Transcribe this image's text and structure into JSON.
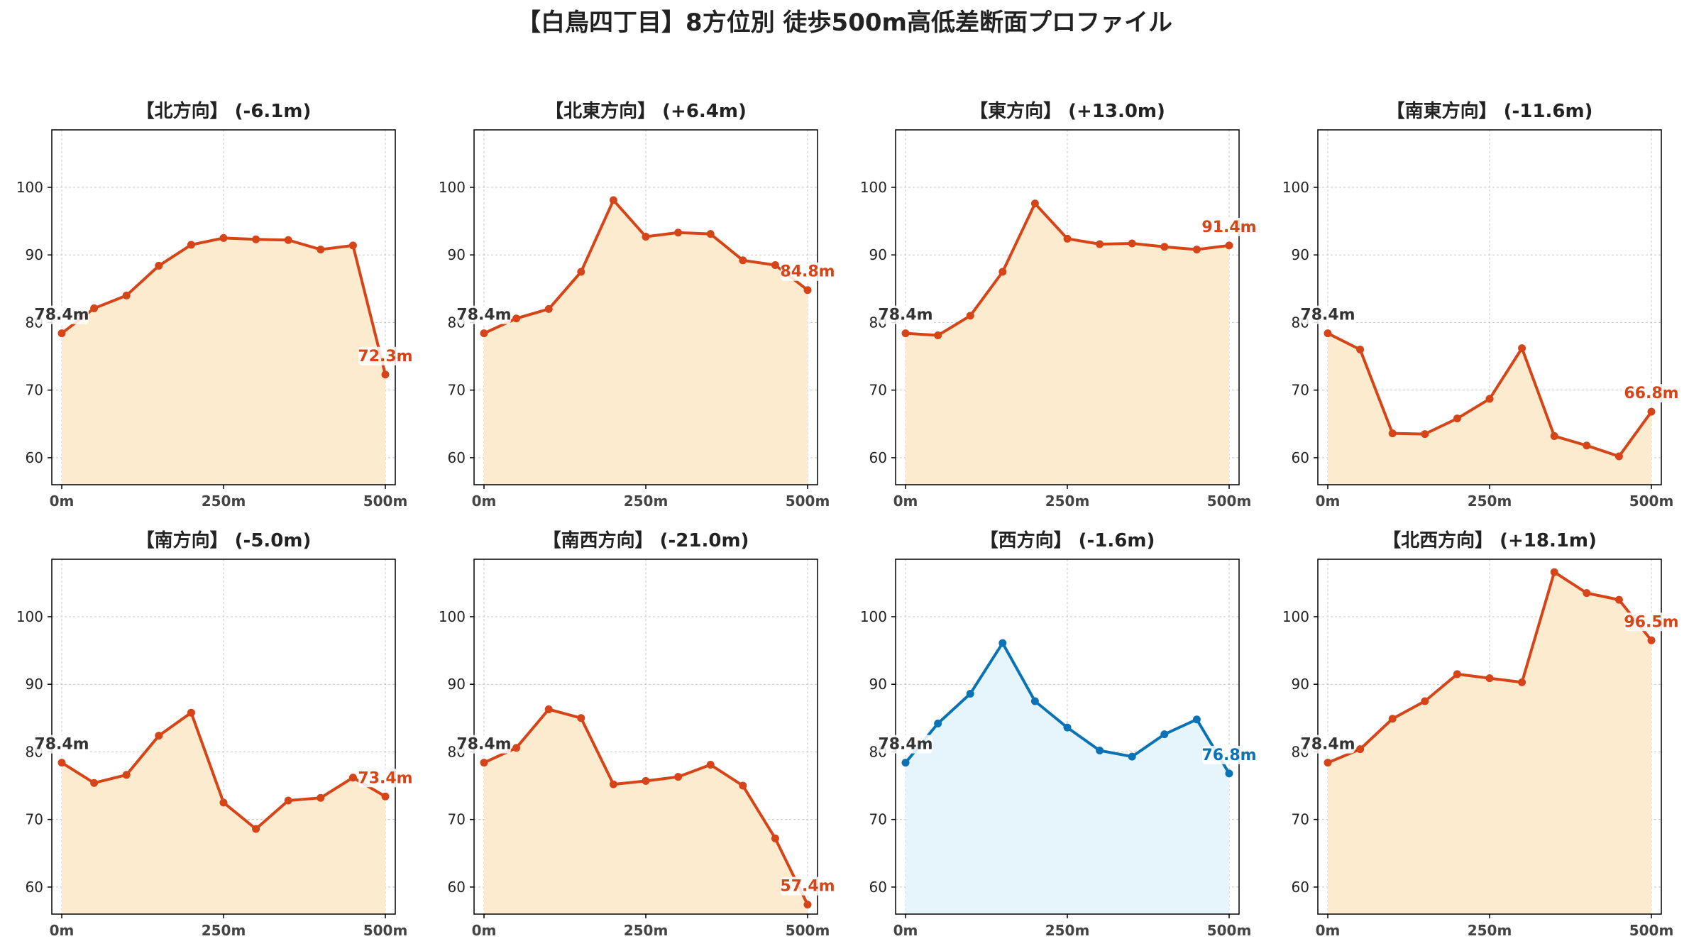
{
  "title": "【白鳥四丁目】8方位別 徒歩500m高低差断面プロファイル",
  "colors": {
    "up_line": "#d64418",
    "up_fill": "#fdebd0",
    "down_line": "#0a73b5",
    "down_fill": "#e6f4fb",
    "start_label": "#333333",
    "grid": "#c8c8c8",
    "axis": "#000000"
  },
  "chart_data": [
    {
      "type": "area",
      "title": "【北方向】 (-6.1m)",
      "x": [
        0,
        50,
        100,
        150,
        200,
        250,
        300,
        350,
        400,
        450,
        500
      ],
      "values": [
        78.4,
        82.1,
        84.0,
        88.4,
        91.5,
        92.5,
        92.3,
        92.2,
        90.8,
        91.4,
        72.3
      ],
      "start_label": "78.4m",
      "end_label": "72.3m",
      "ylim": [
        56,
        108.5
      ],
      "yticks": [
        60,
        70,
        80,
        90,
        100
      ],
      "xticks": [
        0,
        250,
        500
      ],
      "xtick_labels": [
        "0m",
        "250m",
        "500m"
      ],
      "grid": true,
      "color_scheme": "up"
    },
    {
      "type": "area",
      "title": "【北東方向】 (+6.4m)",
      "x": [
        0,
        50,
        100,
        150,
        200,
        250,
        300,
        350,
        400,
        450,
        500
      ],
      "values": [
        78.4,
        80.6,
        82.0,
        87.5,
        98.1,
        92.7,
        93.3,
        93.1,
        89.2,
        88.5,
        84.8
      ],
      "start_label": "78.4m",
      "end_label": "84.8m",
      "ylim": [
        56,
        108.5
      ],
      "yticks": [
        60,
        70,
        80,
        90,
        100
      ],
      "xticks": [
        0,
        250,
        500
      ],
      "xtick_labels": [
        "0m",
        "250m",
        "500m"
      ],
      "grid": true,
      "color_scheme": "up"
    },
    {
      "type": "area",
      "title": "【東方向】 (+13.0m)",
      "x": [
        0,
        50,
        100,
        150,
        200,
        250,
        300,
        350,
        400,
        450,
        500
      ],
      "values": [
        78.4,
        78.1,
        81.0,
        87.5,
        97.6,
        92.4,
        91.6,
        91.7,
        91.2,
        90.8,
        91.4
      ],
      "start_label": "78.4m",
      "end_label": "91.4m",
      "ylim": [
        56,
        108.5
      ],
      "yticks": [
        60,
        70,
        80,
        90,
        100
      ],
      "xticks": [
        0,
        250,
        500
      ],
      "xtick_labels": [
        "0m",
        "250m",
        "500m"
      ],
      "grid": true,
      "color_scheme": "up"
    },
    {
      "type": "area",
      "title": "【南東方向】 (-11.6m)",
      "x": [
        0,
        50,
        100,
        150,
        200,
        250,
        300,
        350,
        400,
        450,
        500
      ],
      "values": [
        78.4,
        76.0,
        63.6,
        63.5,
        65.8,
        68.7,
        76.2,
        63.2,
        61.8,
        60.2,
        66.8
      ],
      "start_label": "78.4m",
      "end_label": "66.8m",
      "ylim": [
        56,
        108.5
      ],
      "yticks": [
        60,
        70,
        80,
        90,
        100
      ],
      "xticks": [
        0,
        250,
        500
      ],
      "xtick_labels": [
        "0m",
        "250m",
        "500m"
      ],
      "grid": true,
      "color_scheme": "up"
    },
    {
      "type": "area",
      "title": "【南方向】 (-5.0m)",
      "x": [
        0,
        50,
        100,
        150,
        200,
        250,
        300,
        350,
        400,
        450,
        500
      ],
      "values": [
        78.4,
        75.4,
        76.6,
        82.4,
        85.8,
        72.5,
        68.6,
        72.8,
        73.2,
        76.2,
        73.4
      ],
      "start_label": "78.4m",
      "end_label": "73.4m",
      "ylim": [
        56,
        108.5
      ],
      "yticks": [
        60,
        70,
        80,
        90,
        100
      ],
      "xticks": [
        0,
        250,
        500
      ],
      "xtick_labels": [
        "0m",
        "250m",
        "500m"
      ],
      "grid": true,
      "color_scheme": "up"
    },
    {
      "type": "area",
      "title": "【南西方向】 (-21.0m)",
      "x": [
        0,
        50,
        100,
        150,
        200,
        250,
        300,
        350,
        400,
        450,
        500
      ],
      "values": [
        78.4,
        80.6,
        86.3,
        85.0,
        75.2,
        75.7,
        76.3,
        78.1,
        75.0,
        67.2,
        57.4
      ],
      "start_label": "78.4m",
      "end_label": "57.4m",
      "ylim": [
        56,
        108.5
      ],
      "yticks": [
        60,
        70,
        80,
        90,
        100
      ],
      "xticks": [
        0,
        250,
        500
      ],
      "xtick_labels": [
        "0m",
        "250m",
        "500m"
      ],
      "grid": true,
      "color_scheme": "up"
    },
    {
      "type": "area",
      "title": "【西方向】 (-1.6m)",
      "x": [
        0,
        50,
        100,
        150,
        200,
        250,
        300,
        350,
        400,
        450,
        500
      ],
      "values": [
        78.4,
        84.2,
        88.6,
        96.1,
        87.5,
        83.6,
        80.2,
        79.3,
        82.6,
        84.8,
        76.8
      ],
      "start_label": "78.4m",
      "end_label": "76.8m",
      "ylim": [
        56,
        108.5
      ],
      "yticks": [
        60,
        70,
        80,
        90,
        100
      ],
      "xticks": [
        0,
        250,
        500
      ],
      "xtick_labels": [
        "0m",
        "250m",
        "500m"
      ],
      "grid": true,
      "color_scheme": "down"
    },
    {
      "type": "area",
      "title": "【北西方向】 (+18.1m)",
      "x": [
        0,
        50,
        100,
        150,
        200,
        250,
        300,
        350,
        400,
        450,
        500
      ],
      "values": [
        78.4,
        80.4,
        84.9,
        87.5,
        91.5,
        90.9,
        90.3,
        106.6,
        103.5,
        102.5,
        96.5
      ],
      "start_label": "78.4m",
      "end_label": "96.5m",
      "ylim": [
        56,
        108.5
      ],
      "yticks": [
        60,
        70,
        80,
        90,
        100
      ],
      "xticks": [
        0,
        250,
        500
      ],
      "xtick_labels": [
        "0m",
        "250m",
        "500m"
      ],
      "grid": true,
      "color_scheme": "up"
    }
  ]
}
